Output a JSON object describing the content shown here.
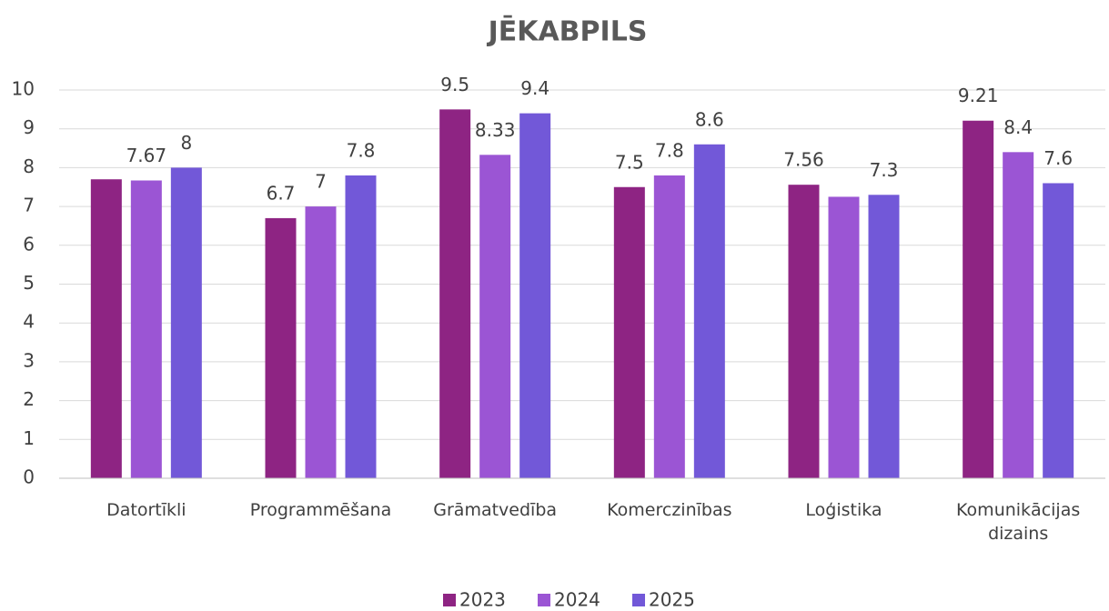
{
  "chart_data": {
    "type": "bar",
    "title": "JĒKABPILS",
    "categories": [
      "Datortīkli",
      "Programmēšana",
      "Grāmatvedība",
      "Komerczinības",
      "Loģistika",
      "Komunikācijas dizains"
    ],
    "series": [
      {
        "name": "2023",
        "color": "#8e2483",
        "values": [
          7.7,
          6.7,
          9.5,
          7.5,
          7.56,
          9.21
        ],
        "value_labels": [
          null,
          "6.7",
          "9.5",
          "7.5",
          "7.56",
          "9.21"
        ]
      },
      {
        "name": "2024",
        "color": "#9b55d4",
        "values": [
          7.67,
          7,
          8.33,
          7.8,
          7.25,
          8.4
        ],
        "value_labels": [
          "7.67",
          "7",
          "8.33",
          "7.8",
          null,
          "8.4"
        ]
      },
      {
        "name": "2025",
        "color": "#7258d8",
        "values": [
          8,
          7.8,
          9.4,
          8.6,
          7.3,
          7.6
        ],
        "value_labels": [
          "8",
          "7.8",
          "9.4",
          "8.6",
          "7.3",
          "7.6"
        ]
      }
    ],
    "ylim": [
      0,
      10
    ],
    "yticks": [
      0,
      1,
      2,
      3,
      4,
      5,
      6,
      7,
      8,
      9,
      10
    ],
    "grid": true,
    "legend": "bottom"
  }
}
